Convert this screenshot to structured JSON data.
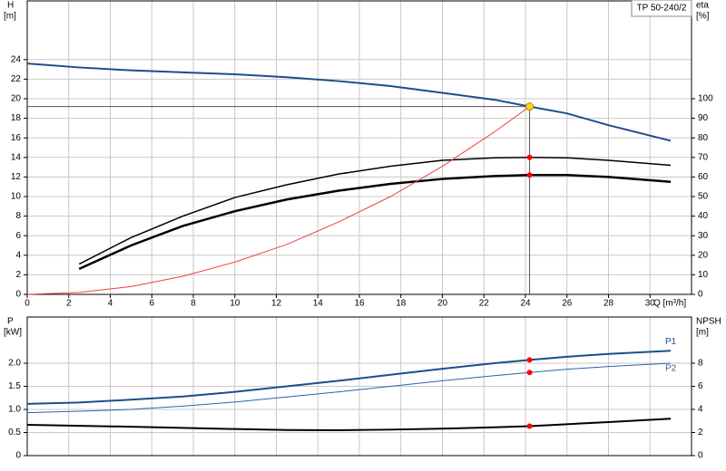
{
  "chart_data": [
    {
      "type": "line",
      "title": "TP 50-240/2",
      "ylabel": "H",
      "yunit": "[m]",
      "y2label": "eta",
      "y2unit": "[%]",
      "xlabel": "Q [m³/h]",
      "xlim": [
        0,
        32
      ],
      "xticks": [
        0,
        2,
        4,
        6,
        8,
        10,
        12,
        14,
        16,
        18,
        20,
        22,
        24,
        26,
        28,
        30
      ],
      "ylim": [
        0,
        30
      ],
      "yticks": [
        0,
        2,
        4,
        6,
        8,
        10,
        12,
        14,
        16,
        18,
        20,
        22,
        24
      ],
      "y2lim": [
        0,
        150
      ],
      "y2ticks": [
        0,
        10,
        20,
        30,
        40,
        50,
        60,
        70,
        80,
        90,
        100
      ],
      "grid": true,
      "duty_point": {
        "x": 24.2,
        "y": 19.2,
        "color": "#ffd21f"
      },
      "series": [
        {
          "color": "#1a4f8a",
          "line_width": 2,
          "x": [
            0,
            2.5,
            5,
            7.5,
            10,
            12.5,
            15,
            17.5,
            20,
            22.5,
            24.2,
            26,
            28,
            31
          ],
          "values": [
            23.6,
            23.2,
            22.9,
            22.7,
            22.5,
            22.2,
            21.8,
            21.3,
            20.6,
            19.9,
            19.2,
            18.5,
            17.3,
            15.7
          ]
        },
        {
          "color": "#000000",
          "line_width": 1.5,
          "axis": "y2",
          "marker_color": "#ff0000",
          "x": [
            2.5,
            5,
            7.5,
            10,
            12.5,
            15,
            17.5,
            20,
            22.5,
            24.2,
            26,
            28,
            31
          ],
          "values": [
            15.5,
            29,
            40,
            49.5,
            56,
            61.5,
            65.5,
            68.5,
            69.8,
            70,
            69.8,
            68.5,
            66
          ]
        },
        {
          "color": "#000000",
          "line_width": 2.5,
          "axis": "y2",
          "marker_color": "#ff0000",
          "x": [
            2.5,
            5,
            7.5,
            10,
            12.5,
            15,
            17.5,
            20,
            22.5,
            24.2,
            26,
            28,
            31
          ],
          "values": [
            13,
            25,
            35,
            42.5,
            48.5,
            53,
            56.5,
            59,
            60.5,
            61,
            61,
            60,
            57.5
          ]
        },
        {
          "color": "#f04040",
          "line_width": 1,
          "x": [
            0,
            2.5,
            5,
            7.5,
            10,
            12.5,
            15,
            17.5,
            20,
            22.5,
            24.2
          ],
          "values": [
            0,
            0.2,
            0.8,
            1.85,
            3.3,
            5.1,
            7.4,
            10.0,
            13.1,
            16.6,
            19.2
          ]
        }
      ]
    },
    {
      "type": "line",
      "ylabel": "P",
      "yunit": "[kW]",
      "y2label": "NPSH",
      "y2unit": "[m]",
      "xlim": [
        0,
        32
      ],
      "ylim": [
        0,
        3
      ],
      "yticks": [
        0,
        0.5,
        {
          "value": 1,
          "label": "1.0"
        },
        1.5,
        {
          "value": 2,
          "label": "2.0"
        }
      ],
      "y2lim": [
        0,
        12
      ],
      "y2ticks": [
        0,
        2,
        4,
        6,
        8
      ],
      "grid": true,
      "series": [
        {
          "name": "P1",
          "color": "#1a4f8a",
          "line_width": 2,
          "marker_color": "#ff0000",
          "x": [
            0,
            2.5,
            5,
            7.5,
            10,
            12.5,
            15,
            17.5,
            20,
            22.5,
            24.2,
            26,
            28,
            31
          ],
          "values": [
            1.12,
            1.15,
            1.21,
            1.28,
            1.38,
            1.5,
            1.62,
            1.75,
            1.88,
            2.0,
            2.07,
            2.14,
            2.2,
            2.27
          ]
        },
        {
          "name": "P2",
          "color": "#2a64a8",
          "line_width": 1,
          "marker_color": "#ff0000",
          "x": [
            0,
            2.5,
            5,
            7.5,
            10,
            12.5,
            15,
            17.5,
            20,
            22.5,
            24.2,
            26,
            28,
            31
          ],
          "values": [
            0.93,
            0.96,
            1.0,
            1.07,
            1.16,
            1.27,
            1.38,
            1.5,
            1.62,
            1.73,
            1.8,
            1.87,
            1.93,
            2.0
          ]
        },
        {
          "color": "#000000",
          "line_width": 2,
          "axis": "y2",
          "marker_color": "#ff0000",
          "x": [
            0,
            5,
            10,
            12.5,
            15,
            17.5,
            20,
            22.5,
            24.2,
            26,
            28,
            31
          ],
          "values": [
            2.67,
            2.5,
            2.3,
            2.22,
            2.2,
            2.25,
            2.33,
            2.45,
            2.55,
            2.72,
            2.9,
            3.2
          ]
        }
      ]
    }
  ]
}
